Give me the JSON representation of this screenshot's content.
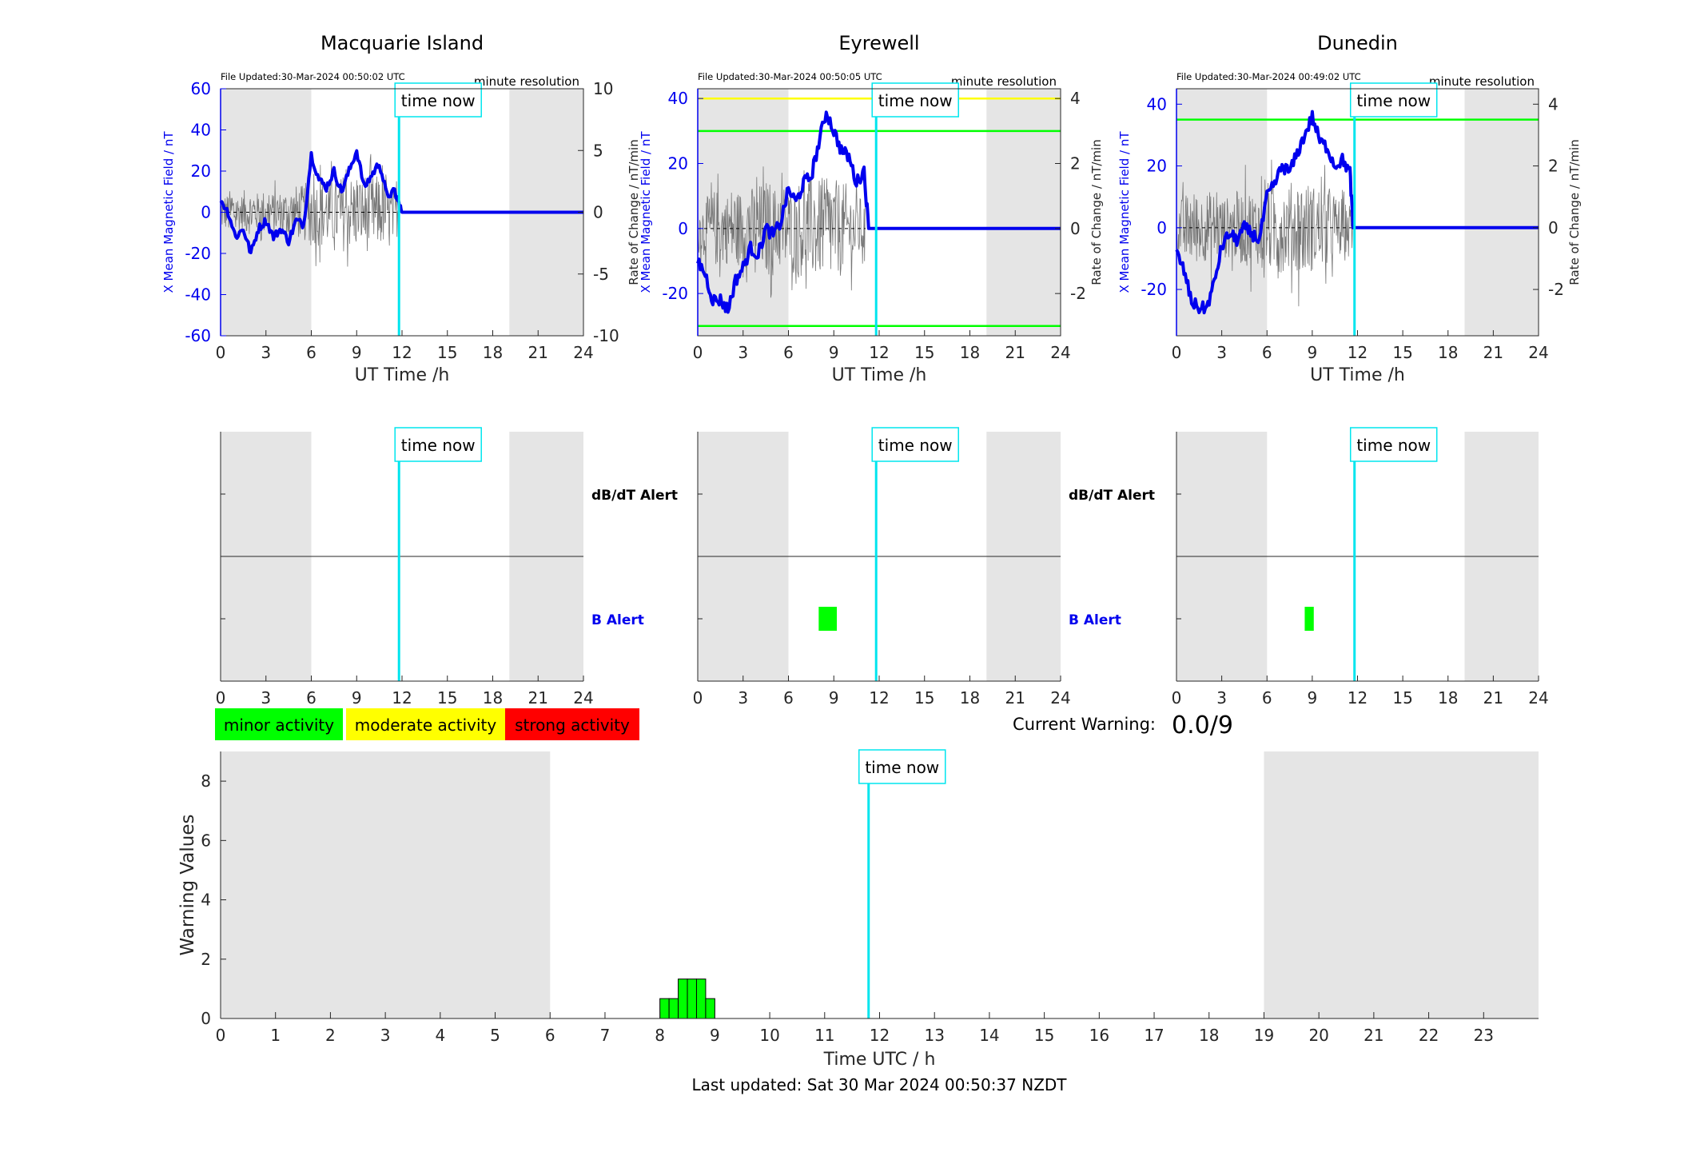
{
  "colors": {
    "blue": "#0000ee",
    "cyan": "#00e5ee",
    "night_shade": "#e5e5e5",
    "green": "#00ff00",
    "yellow": "#ffff00",
    "red": "#ff0000",
    "noise": "#777777"
  },
  "common": {
    "file_label": "minute resolution",
    "time_now_label": "time now",
    "xlabel": "UT Time /h",
    "ylabel_left": "X Mean Magnetic Field / nT",
    "ylabel_right": "Rate of Change / nT/min",
    "alert_dbdt": "dB/dT Alert",
    "alert_b": "B Alert"
  },
  "legend": {
    "minor": "minor activity",
    "moderate": "moderate activity",
    "strong": "strong activity"
  },
  "current_warning": {
    "label": "Current Warning:",
    "value": "0.0/9"
  },
  "footer": {
    "last_updated": "Last updated: Sat 30 Mar 2024 00:50:37 NZDT"
  },
  "chart_data": [
    {
      "type": "line",
      "title": "Macquarie Island",
      "file_updated": "File Updated:30-Mar-2024 00:50:02 UTC",
      "xlabel": "UT Time /h",
      "ylabel": "X Mean Magnetic Field / nT",
      "y2label": "Rate of Change / nT/min",
      "xlim": [
        0,
        24
      ],
      "xticks": [
        0,
        3,
        6,
        9,
        12,
        15,
        18,
        21,
        24
      ],
      "ylim": [
        -60,
        60
      ],
      "yticks": [
        -60,
        -40,
        -20,
        0,
        20,
        40,
        60
      ],
      "y2lim": [
        -10,
        10
      ],
      "y2ticks": [
        -10,
        -5,
        0,
        5,
        10
      ],
      "time_now": 11.8,
      "night": [
        [
          0,
          6
        ],
        [
          19.1,
          24
        ]
      ],
      "thresholds": [],
      "series": [
        {
          "name": "X Mean Magnetic Field",
          "x": [
            0,
            0.5,
            1,
            1.5,
            2,
            2.5,
            3,
            3.5,
            4,
            4.5,
            5,
            5.5,
            6,
            6.5,
            7,
            7.5,
            8,
            8.5,
            9,
            9.5,
            10,
            10.5,
            11,
            11.5,
            11.8,
            12,
            24
          ],
          "y": [
            6,
            0,
            -12,
            -8,
            -20,
            -8,
            -4,
            -12,
            -8,
            -14,
            -4,
            -6,
            28,
            16,
            12,
            20,
            10,
            20,
            30,
            12,
            18,
            24,
            8,
            10,
            4,
            0,
            0
          ]
        },
        {
          "name": "Rate of Change",
          "axis": "right",
          "envelope": [
            1.5,
            1.8,
            1.5,
            1.8,
            1.6,
            1.8,
            1.6,
            1.7,
            1.8,
            2.0,
            2.2,
            2.4,
            2.8,
            3.0,
            2.8,
            2.9,
            3.2,
            3.0,
            2.8,
            3.2,
            3.0,
            2.8,
            2.0
          ],
          "t_end": 11.8
        }
      ],
      "alerts": []
    },
    {
      "type": "line",
      "title": "Eyrewell",
      "file_updated": "File Updated:30-Mar-2024 00:50:05 UTC",
      "xlabel": "UT Time /h",
      "ylabel": "X Mean Magnetic Field / nT",
      "y2label": "Rate of Change / nT/min",
      "xlim": [
        0,
        24
      ],
      "xticks": [
        0,
        3,
        6,
        9,
        12,
        15,
        18,
        21,
        24
      ],
      "ylim": [
        -33,
        43
      ],
      "yticks": [
        -20,
        0,
        20,
        40
      ],
      "y2lim": [
        -3.3,
        4.3
      ],
      "y2ticks": [
        -2,
        0,
        2,
        4
      ],
      "time_now": 11.8,
      "night": [
        [
          0,
          6
        ],
        [
          19.1,
          24
        ]
      ],
      "thresholds": [
        {
          "y": 40,
          "color": "yellow"
        },
        {
          "y": 30,
          "color": "green"
        },
        {
          "y": -30,
          "color": "green"
        }
      ],
      "series": [
        {
          "name": "X Mean Magnetic Field",
          "x": [
            0,
            0.5,
            1,
            1.5,
            2,
            2.5,
            3,
            3.5,
            4,
            4.5,
            5,
            5.5,
            6,
            6.5,
            7,
            7.5,
            8,
            8.5,
            9,
            9.5,
            10,
            10.5,
            11,
            11.3,
            11.8,
            24
          ],
          "y": [
            -10,
            -14,
            -22,
            -22,
            -25,
            -16,
            -12,
            -6,
            -8,
            0,
            -2,
            2,
            12,
            8,
            14,
            16,
            26,
            36,
            30,
            24,
            22,
            14,
            18,
            0,
            0,
            0
          ],
          "drop_at": 11.2
        },
        {
          "name": "Rate of Change",
          "axis": "right",
          "envelope": [
            0.8,
            1.0,
            1.2,
            1.1,
            1.3,
            1.2,
            1.2,
            1.3,
            1.4,
            1.5,
            1.3,
            1.4,
            1.3,
            1.5,
            1.6,
            1.6,
            1.5,
            1.7,
            1.5,
            1.4,
            1.2,
            1.0,
            0.8
          ],
          "t_end": 11.1
        }
      ],
      "alerts": [
        {
          "row": "B",
          "x0": 8.0,
          "x1": 9.2
        }
      ]
    },
    {
      "type": "line",
      "title": "Dunedin",
      "file_updated": "File Updated:30-Mar-2024 00:49:02 UTC",
      "xlabel": "UT Time /h",
      "ylabel": "X Mean Magnetic Field / nT",
      "y2label": "Rate of Change / nT/min",
      "xlim": [
        0,
        24
      ],
      "xticks": [
        0,
        3,
        6,
        9,
        12,
        15,
        18,
        21,
        24
      ],
      "ylim": [
        -35,
        45
      ],
      "yticks": [
        -20,
        0,
        20,
        40
      ],
      "y2lim": [
        -3.5,
        4.5
      ],
      "y2ticks": [
        -2,
        0,
        2,
        4
      ],
      "time_now": 11.8,
      "night": [
        [
          0,
          6
        ],
        [
          19.1,
          24
        ]
      ],
      "thresholds": [
        {
          "y": 35,
          "color": "green"
        }
      ],
      "series": [
        {
          "name": "X Mean Magnetic Field",
          "x": [
            0,
            0.5,
            1,
            1.5,
            2,
            2.5,
            3,
            3.5,
            4,
            4.5,
            5,
            5.5,
            6,
            6.5,
            7,
            7.5,
            8,
            8.5,
            9,
            9.5,
            10,
            10.5,
            11,
            11.5,
            11.7,
            12,
            24
          ],
          "y": [
            -8,
            -14,
            -24,
            -26,
            -26,
            -18,
            -6,
            -2,
            -4,
            0,
            -2,
            -4,
            10,
            14,
            20,
            18,
            24,
            30,
            36,
            28,
            26,
            20,
            22,
            18,
            0,
            0,
            0
          ]
        },
        {
          "name": "Rate of Change",
          "axis": "right",
          "envelope": [
            1.0,
            1.1,
            1.2,
            1.1,
            1.2,
            1.1,
            1.0,
            1.1,
            1.2,
            1.3,
            1.2,
            1.3,
            1.5,
            1.6,
            1.4,
            1.5,
            1.6,
            1.5,
            1.4,
            1.3,
            1.2,
            1.0,
            0.8
          ],
          "t_end": 11.7
        }
      ],
      "alerts": [
        {
          "row": "B",
          "x0": 8.5,
          "x1": 9.1
        }
      ]
    },
    {
      "type": "bar",
      "title": "",
      "xlabel": "Time UTC / h",
      "ylabel": "Warning Values",
      "xlim": [
        0,
        24
      ],
      "xticks": [
        0,
        1,
        2,
        3,
        4,
        5,
        6,
        7,
        8,
        9,
        10,
        11,
        12,
        13,
        14,
        15,
        16,
        17,
        18,
        19,
        20,
        21,
        22,
        23
      ],
      "ylim": [
        0,
        9
      ],
      "yticks": [
        0,
        2,
        4,
        6,
        8
      ],
      "time_now": 11.8,
      "night": [
        [
          0,
          6
        ],
        [
          19,
          24
        ]
      ],
      "bar_width": 0.1667,
      "bars_x": [
        8.0,
        8.1667,
        8.3333,
        8.5,
        8.6667,
        8.8333
      ],
      "bars_y": [
        0.67,
        0.67,
        1.33,
        1.33,
        1.33,
        0.67
      ]
    }
  ]
}
